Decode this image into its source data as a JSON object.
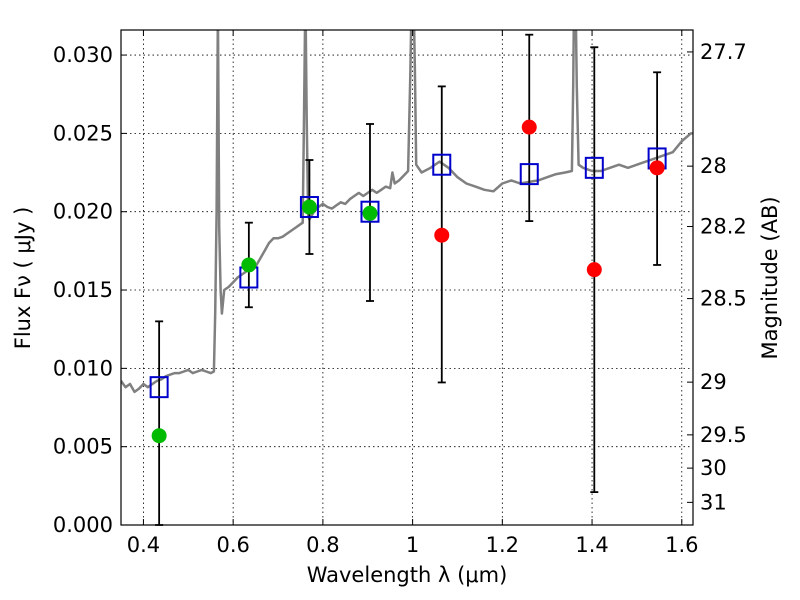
{
  "chart_data": {
    "type": "scatter",
    "xlabel": "Wavelength  λ (μm)",
    "ylabel": "Flux  Fν  ( μJy )",
    "y2label": "Magnitude (AB)",
    "xlim": [
      0.35,
      1.625
    ],
    "ylim": [
      0.0,
      0.0316
    ],
    "grid": true,
    "x_ticks": [
      0.4,
      0.6,
      0.8,
      1.0,
      1.2,
      1.4,
      1.6
    ],
    "x_tick_labels": [
      "0.4",
      "0.6",
      "0.8",
      "1",
      "1.2",
      "1.4",
      "1.6"
    ],
    "y_ticks": [
      0.0,
      0.005,
      0.01,
      0.015,
      0.02,
      0.025,
      0.03
    ],
    "y_tick_labels": [
      "0.000",
      "0.005",
      "0.010",
      "0.015",
      "0.020",
      "0.025",
      "0.030"
    ],
    "mag_ticks": [
      {
        "label": "27.7",
        "mag": 27.7
      },
      {
        "label": "28",
        "mag": 28.0
      },
      {
        "label": "28.2",
        "mag": 28.2
      },
      {
        "label": "28.5",
        "mag": 28.5
      },
      {
        "label": "29",
        "mag": 29.0
      },
      {
        "label": "29.5",
        "mag": 29.5
      },
      {
        "label": "30",
        "mag": 30.0
      },
      {
        "label": "31",
        "mag": 31.0
      }
    ],
    "model_spectrum": {
      "color": "#808080",
      "points": [
        [
          0.35,
          0.0092
        ],
        [
          0.36,
          0.0088
        ],
        [
          0.37,
          0.009
        ],
        [
          0.38,
          0.0085
        ],
        [
          0.39,
          0.0087
        ],
        [
          0.4,
          0.009
        ],
        [
          0.41,
          0.0088
        ],
        [
          0.42,
          0.009
        ],
        [
          0.43,
          0.0092
        ],
        [
          0.44,
          0.0093
        ],
        [
          0.45,
          0.0095
        ],
        [
          0.46,
          0.0096
        ],
        [
          0.47,
          0.0097
        ],
        [
          0.48,
          0.0097
        ],
        [
          0.49,
          0.0098
        ],
        [
          0.5,
          0.0099
        ],
        [
          0.51,
          0.0097
        ],
        [
          0.52,
          0.0098
        ],
        [
          0.53,
          0.0099
        ],
        [
          0.54,
          0.0098
        ],
        [
          0.55,
          0.0097
        ],
        [
          0.557,
          0.0098
        ],
        [
          0.56,
          0.0135
        ],
        [
          0.563,
          0.02
        ],
        [
          0.566,
          0.033
        ],
        [
          0.569,
          0.019
        ],
        [
          0.572,
          0.015
        ],
        [
          0.575,
          0.0135
        ],
        [
          0.58,
          0.015
        ],
        [
          0.59,
          0.0152
        ],
        [
          0.6,
          0.0155
        ],
        [
          0.61,
          0.0158
        ],
        [
          0.62,
          0.016
        ],
        [
          0.63,
          0.0162
        ],
        [
          0.64,
          0.0163
        ],
        [
          0.65,
          0.0165
        ],
        [
          0.66,
          0.017
        ],
        [
          0.67,
          0.0175
        ],
        [
          0.68,
          0.018
        ],
        [
          0.69,
          0.0183
        ],
        [
          0.7,
          0.0183
        ],
        [
          0.71,
          0.0184
        ],
        [
          0.72,
          0.0186
        ],
        [
          0.73,
          0.0188
        ],
        [
          0.74,
          0.019
        ],
        [
          0.75,
          0.0192
        ],
        [
          0.755,
          0.0193
        ],
        [
          0.758,
          0.026
        ],
        [
          0.761,
          0.034
        ],
        [
          0.764,
          0.026
        ],
        [
          0.767,
          0.0198
        ],
        [
          0.77,
          0.0195
        ],
        [
          0.78,
          0.02
        ],
        [
          0.79,
          0.0203
        ],
        [
          0.8,
          0.0205
        ],
        [
          0.81,
          0.0203
        ],
        [
          0.82,
          0.0202
        ],
        [
          0.83,
          0.0204
        ],
        [
          0.84,
          0.0206
        ],
        [
          0.85,
          0.0205
        ],
        [
          0.86,
          0.0208
        ],
        [
          0.87,
          0.021
        ],
        [
          0.88,
          0.0212
        ],
        [
          0.89,
          0.021
        ],
        [
          0.9,
          0.0212
        ],
        [
          0.91,
          0.0214
        ],
        [
          0.92,
          0.0212
        ],
        [
          0.93,
          0.0214
        ],
        [
          0.94,
          0.0216
        ],
        [
          0.95,
          0.0215
        ],
        [
          0.955,
          0.0225
        ],
        [
          0.96,
          0.0218
        ],
        [
          0.97,
          0.022
        ],
        [
          0.98,
          0.0223
        ],
        [
          0.99,
          0.0226
        ],
        [
          0.995,
          0.029
        ],
        [
          0.998,
          0.034
        ],
        [
          1.002,
          0.034
        ],
        [
          1.005,
          0.029
        ],
        [
          1.008,
          0.023
        ],
        [
          1.02,
          0.0225
        ],
        [
          1.04,
          0.0228
        ],
        [
          1.06,
          0.0232
        ],
        [
          1.08,
          0.0228
        ],
        [
          1.1,
          0.0222
        ],
        [
          1.12,
          0.0218
        ],
        [
          1.14,
          0.0216
        ],
        [
          1.16,
          0.0214
        ],
        [
          1.18,
          0.0213
        ],
        [
          1.2,
          0.0218
        ],
        [
          1.22,
          0.022
        ],
        [
          1.24,
          0.0218
        ],
        [
          1.26,
          0.0219
        ],
        [
          1.28,
          0.022
        ],
        [
          1.3,
          0.0222
        ],
        [
          1.32,
          0.0224
        ],
        [
          1.34,
          0.0225
        ],
        [
          1.355,
          0.0226
        ],
        [
          1.358,
          0.028
        ],
        [
          1.36,
          0.034
        ],
        [
          1.363,
          0.034
        ],
        [
          1.366,
          0.028
        ],
        [
          1.37,
          0.023
        ],
        [
          1.38,
          0.0228
        ],
        [
          1.4,
          0.0226
        ],
        [
          1.42,
          0.0226
        ],
        [
          1.44,
          0.0228
        ],
        [
          1.46,
          0.023
        ],
        [
          1.48,
          0.0228
        ],
        [
          1.5,
          0.023
        ],
        [
          1.52,
          0.0232
        ],
        [
          1.54,
          0.0234
        ],
        [
          1.56,
          0.0236
        ],
        [
          1.58,
          0.0238
        ],
        [
          1.6,
          0.0245
        ],
        [
          1.62,
          0.025
        ],
        [
          1.625,
          0.025
        ]
      ]
    },
    "series": [
      {
        "marker": "open-square",
        "color": "#0000cc",
        "points": [
          {
            "x": 0.435,
            "y": 0.0088
          },
          {
            "x": 0.635,
            "y": 0.0158
          },
          {
            "x": 0.77,
            "y": 0.0203
          },
          {
            "x": 0.905,
            "y": 0.02
          },
          {
            "x": 1.065,
            "y": 0.023
          },
          {
            "x": 1.26,
            "y": 0.0224
          },
          {
            "x": 1.405,
            "y": 0.0228
          },
          {
            "x": 1.545,
            "y": 0.0234
          }
        ]
      },
      {
        "marker": "filled-circle",
        "color": "#00bb00",
        "points": [
          {
            "x": 0.435,
            "y": 0.0057,
            "err": [
              0.0,
              0.013
            ]
          },
          {
            "x": 0.635,
            "y": 0.0166,
            "err": [
              0.0139,
              0.0193
            ]
          },
          {
            "x": 0.77,
            "y": 0.0203,
            "err": [
              0.0173,
              0.0233
            ]
          },
          {
            "x": 0.905,
            "y": 0.0199,
            "err": [
              0.0143,
              0.0256
            ]
          }
        ]
      },
      {
        "marker": "filled-circle",
        "color": "#ff0000",
        "points": [
          {
            "x": 1.065,
            "y": 0.0185,
            "err": [
              0.0091,
              0.028
            ]
          },
          {
            "x": 1.26,
            "y": 0.0254,
            "err": [
              0.0194,
              0.0313
            ]
          },
          {
            "x": 1.405,
            "y": 0.0163,
            "err": [
              0.0021,
              0.0305
            ]
          },
          {
            "x": 1.545,
            "y": 0.0228,
            "err": [
              0.0166,
              0.0289
            ]
          }
        ]
      }
    ]
  }
}
